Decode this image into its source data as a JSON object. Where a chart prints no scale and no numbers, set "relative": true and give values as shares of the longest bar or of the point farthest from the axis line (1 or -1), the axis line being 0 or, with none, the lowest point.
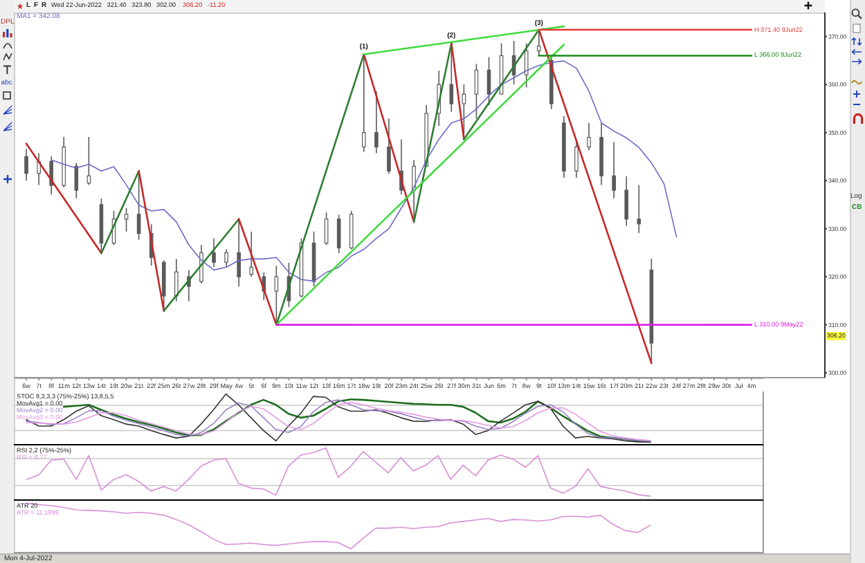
{
  "chart_data": [
    {
      "type": "candlestick",
      "title": "Wed 22-Jun-2022   321.40   323.80   302.00",
      "subtitle": "306.20   -11.20",
      "categories": [
        "6w",
        "7t",
        "8f",
        "11m",
        "12t",
        "13w",
        "14t",
        "19t",
        "20w",
        "21t",
        "22f",
        "25m",
        "26t",
        "27w",
        "28t",
        "29f",
        "May",
        "4w",
        "5t",
        "6f",
        "9m",
        "10t",
        "11w",
        "12t",
        "13f",
        "16m",
        "17t",
        "18w",
        "19t",
        "20f",
        "23m",
        "24t",
        "25w",
        "26t",
        "27f",
        "30m",
        "31t",
        "Jun",
        "6m",
        "7t",
        "8w",
        "9t",
        "10f",
        "13m",
        "14t",
        "15w",
        "16t",
        "17f",
        "20m",
        "21t",
        "22w",
        "23t",
        "24f",
        "27m",
        "28t",
        "29w",
        "30t",
        "Jul",
        "4m"
      ],
      "ohlc": [
        [
          345,
          346.6,
          340,
          341.5
        ],
        [
          341.5,
          345.7,
          339.1,
          344
        ],
        [
          344,
          345.1,
          337.1,
          339
        ],
        [
          339,
          349.1,
          338.6,
          347
        ],
        [
          343,
          343.7,
          336.3,
          338
        ],
        [
          339.5,
          349.1,
          339.1,
          341
        ],
        [
          335,
          336.3,
          324.9,
          327
        ],
        [
          327,
          333.7,
          326.6,
          332
        ],
        [
          332,
          334.3,
          329.4,
          333
        ],
        [
          333,
          342,
          327.7,
          329
        ],
        [
          329,
          330.9,
          322.3,
          324
        ],
        [
          323,
          323.4,
          312.9,
          316
        ],
        [
          316,
          323.7,
          314.9,
          321
        ],
        [
          320,
          321.4,
          314.9,
          318
        ],
        [
          319,
          326.6,
          318.6,
          325
        ],
        [
          325,
          328,
          322,
          323
        ],
        [
          323,
          325.7,
          322,
          325
        ],
        [
          325,
          332,
          318,
          320
        ],
        [
          320.5,
          329.4,
          320,
          322
        ],
        [
          320,
          320.9,
          315.1,
          317
        ],
        [
          317,
          322.3,
          310,
          320
        ],
        [
          320,
          322.9,
          313.7,
          315
        ],
        [
          316,
          328,
          315.7,
          327
        ],
        [
          327,
          329.4,
          318,
          319
        ],
        [
          327,
          333.4,
          326.6,
          332
        ],
        [
          332,
          332.9,
          324.9,
          326
        ],
        [
          326,
          333.7,
          325.7,
          333
        ],
        [
          347,
          366.3,
          346,
          350
        ],
        [
          350,
          358.6,
          345.7,
          347
        ],
        [
          347,
          352.9,
          341.4,
          342
        ],
        [
          342,
          348.6,
          337.1,
          338
        ],
        [
          338,
          344.3,
          331.4,
          343
        ],
        [
          343,
          355.7,
          342.9,
          354
        ],
        [
          354,
          362.9,
          351.4,
          360
        ],
        [
          360,
          368.6,
          354.3,
          356
        ],
        [
          356,
          360,
          348.6,
          358
        ],
        [
          358,
          364.3,
          352.9,
          363
        ],
        [
          363,
          365.7,
          355.7,
          358
        ],
        [
          358,
          368.6,
          358,
          366
        ],
        [
          366,
          369.1,
          360,
          362
        ],
        [
          362,
          368.6,
          359.4,
          367
        ],
        [
          367,
          371.4,
          366,
          368
        ],
        [
          365,
          365.7,
          354.9,
          356
        ],
        [
          352,
          353.4,
          340.6,
          342
        ],
        [
          342,
          348.6,
          340.6,
          347
        ],
        [
          347,
          352,
          346.3,
          349
        ],
        [
          349,
          352,
          339.1,
          341
        ],
        [
          341,
          348,
          336.3,
          338
        ],
        [
          338,
          340.9,
          330.6,
          332
        ],
        [
          332,
          339.1,
          329.1,
          331
        ],
        [
          321.4,
          323.8,
          302,
          306.2
        ],
        null,
        null,
        null,
        null,
        null,
        null,
        null,
        null
      ],
      "color": "#5a5a5a",
      "ylim": [
        299,
        375
      ],
      "yticks": [
        {
          "value": 300,
          "label": "300.00"
        },
        {
          "value": 310,
          "label": "310.00"
        },
        {
          "value": 320,
          "label": "320.00"
        },
        {
          "value": 330,
          "label": "330.00"
        },
        {
          "value": 340,
          "label": "340.00"
        },
        {
          "value": 350,
          "label": "350.00"
        },
        {
          "value": 360,
          "label": "360.00"
        },
        {
          "value": 370,
          "label": "370.00"
        }
      ],
      "legend": "top left",
      "series": [
        {
          "type": "line",
          "name": "MA1 = 342.08",
          "color": "#6b6bc9",
          "values": [
            null,
            null,
            344.3,
            343.4,
            342.6,
            343.4,
            342,
            342.9,
            339.1,
            334.9,
            333.7,
            334,
            331.4,
            326.6,
            323.4,
            321.4,
            322,
            323.4,
            323.7,
            323.7,
            324,
            320.9,
            319.4,
            319.1,
            320.9,
            322,
            324.3,
            325.7,
            328,
            330,
            334.3,
            338.6,
            344.3,
            348.6,
            352,
            352.9,
            354.9,
            357.7,
            360,
            361.4,
            362.9,
            364,
            364.6,
            364.9,
            363.4,
            358.6,
            352,
            350.3,
            348.9,
            346.9,
            343.7,
            339.4,
            328.3,
            null,
            null,
            null,
            null,
            null,
            null
          ]
        },
        {
          "type": "line",
          "color": "#c62828",
          "x": [
            "6w",
            "14t"
          ],
          "values": [
            347.7,
            324.9
          ]
        },
        {
          "type": "line",
          "color": "#2e7d32",
          "x": [
            "14t",
            "21t"
          ],
          "values": [
            324.9,
            342
          ]
        },
        {
          "type": "line",
          "color": "#c62828",
          "x": [
            "21t",
            "25m"
          ],
          "values": [
            342,
            312.9
          ]
        },
        {
          "type": "line",
          "color": "#2e7d32",
          "x": [
            "25m",
            "4w"
          ],
          "values": [
            312.9,
            332
          ]
        },
        {
          "type": "line",
          "color": "#c62828",
          "x": [
            "4w",
            "9m"
          ],
          "values": [
            332,
            310
          ]
        },
        {
          "type": "line",
          "color": "#2e7d32",
          "x": [
            "9m",
            "18w"
          ],
          "values": [
            310,
            366.3
          ]
        },
        {
          "type": "line",
          "color": "#c62828",
          "x": [
            "18w",
            "24t"
          ],
          "values": [
            366.3,
            331.4
          ]
        },
        {
          "type": "line",
          "color": "#2e7d32",
          "x": [
            "24t",
            "27f"
          ],
          "values": [
            331.4,
            368.6
          ]
        },
        {
          "type": "line",
          "color": "#c62828",
          "x": [
            "27f",
            "30m"
          ],
          "values": [
            368.6,
            348.6
          ]
        },
        {
          "type": "line",
          "color": "#2e7d32",
          "x": [
            "30m",
            "9t"
          ],
          "values": [
            348.6,
            371.4
          ]
        },
        {
          "type": "line",
          "color": "#c62828",
          "x": [
            "9t",
            "22w"
          ],
          "values": [
            371.4,
            302
          ]
        },
        {
          "type": "line",
          "color": "#3ddc3d",
          "x": [
            "9m",
            "13m"
          ],
          "values": [
            310,
            368.3
          ]
        },
        {
          "type": "line",
          "color": "#3ddc3d",
          "x": [
            "18w",
            "13m"
          ],
          "values": [
            366.3,
            372.1
          ]
        },
        {
          "type": "line",
          "name": "H 371.40 9Jun22",
          "color": "#e53935",
          "x": [
            "9t",
            "4m"
          ],
          "values": [
            371.4,
            371.4
          ]
        },
        {
          "type": "line",
          "name": "L 366.00 9Jun22",
          "color": "#1b8a1b",
          "x": [
            "9t",
            "4m"
          ],
          "values": [
            366,
            366
          ]
        },
        {
          "type": "line",
          "name": "L 310.00 9May22",
          "color": "#e020e0",
          "x": [
            "9m",
            "4m"
          ],
          "values": [
            310,
            310
          ]
        }
      ],
      "annotations": [
        "L",
        "F",
        "R",
        "DPL",
        "abc",
        "Log",
        "CB",
        "Mon 4-Jul-2022",
        "306.20",
        {
          "text": "(1)",
          "x": "18w",
          "y": 366.3
        },
        {
          "text": "(2)",
          "x": "27f",
          "y": 368.6
        },
        {
          "text": "(3)",
          "x": "9t",
          "y": 371.4
        }
      ]
    },
    {
      "type": "line",
      "title": "STOC 8,3,3,3 (75%-25%) 13,8,5,5",
      "relative": true,
      "tick_labels": false,
      "legend": "top left",
      "categories": [
        "6w",
        "7t",
        "8f",
        "11m",
        "12t",
        "13w",
        "14t",
        "19t",
        "20w",
        "21t",
        "22f",
        "25m",
        "26t",
        "27w",
        "28t",
        "29f",
        "May",
        "4w",
        "5t",
        "6f",
        "9m",
        "10t",
        "11w",
        "12t",
        "13f",
        "16m",
        "17t",
        "18w",
        "19t",
        "20f",
        "23m",
        "24t",
        "25w",
        "26t",
        "27f",
        "30m",
        "31t",
        "Jun",
        "6m",
        "7t",
        "8w",
        "9t",
        "10f",
        "13m",
        "14t",
        "15w",
        "16t",
        "17f",
        "20m",
        "21t",
        "22w",
        "23t",
        "24f",
        "27m",
        "28t",
        "29w",
        "30t",
        "Jul",
        "4m"
      ],
      "series": [
        {
          "color": "#1e6e1e",
          "values": [
            null,
            null,
            null,
            0.74,
            0.76,
            0.78,
            0.68,
            0.58,
            0.5,
            0.43,
            0.37,
            0.3,
            0.22,
            0.16,
            0.17,
            0.28,
            0.45,
            0.62,
            0.78,
            0.88,
            0.78,
            0.6,
            0.52,
            0.56,
            0.7,
            0.85,
            0.89,
            0.88,
            0.86,
            0.84,
            0.82,
            0.8,
            0.79,
            0.78,
            0.78,
            0.74,
            0.62,
            0.45,
            0.42,
            0.5,
            0.64,
            0.85,
            0.72,
            0.55,
            0.4,
            0.25,
            0.14,
            0.11,
            0.08,
            0.05,
            0.03,
            null,
            null,
            null,
            null,
            null,
            null,
            null,
            null
          ]
        },
        {
          "name": "MovAvg1 = 0.00",
          "color": "#333333",
          "values": [
            0.48,
            0.35,
            0.35,
            0.48,
            0.65,
            0.76,
            0.56,
            0.48,
            0.39,
            0.35,
            0.26,
            0.18,
            0.11,
            0.14,
            0.39,
            0.68,
            1.0,
            0.78,
            0.52,
            0.26,
            0.05,
            0.35,
            0.61,
            0.95,
            0.93,
            0.74,
            0.65,
            0.65,
            0.68,
            0.61,
            0.52,
            0.45,
            0.44,
            0.48,
            0.48,
            0.39,
            0.18,
            0.26,
            0.45,
            0.61,
            0.78,
            0.85,
            0.71,
            0.35,
            0.11,
            0.14,
            0.11,
            0.09,
            0.05,
            0.03,
            0.03,
            null,
            null,
            null,
            null,
            null,
            null,
            null,
            null
          ]
        },
        {
          "name": "MovAvg2 = 0.00",
          "color": "#9a80c8",
          "values": [
            0.45,
            0.42,
            0.38,
            0.4,
            0.52,
            0.66,
            0.66,
            0.55,
            0.47,
            0.4,
            0.33,
            0.26,
            0.18,
            0.14,
            0.22,
            0.4,
            0.68,
            0.82,
            0.76,
            0.52,
            0.28,
            0.22,
            0.34,
            0.64,
            0.83,
            0.88,
            0.78,
            0.68,
            0.66,
            0.65,
            0.6,
            0.53,
            0.47,
            0.46,
            0.47,
            0.45,
            0.35,
            0.28,
            0.3,
            0.44,
            0.61,
            0.75,
            0.78,
            0.64,
            0.39,
            0.2,
            0.12,
            0.11,
            0.08,
            0.06,
            0.04,
            null,
            null,
            null,
            null,
            null,
            null,
            null,
            null
          ]
        },
        {
          "name": "MovAvg3 = 0.00",
          "color": "#e49ae4",
          "values": [
            0.42,
            0.41,
            0.4,
            0.39,
            0.43,
            0.52,
            0.62,
            0.62,
            0.56,
            0.47,
            0.4,
            0.33,
            0.26,
            0.19,
            0.18,
            0.25,
            0.43,
            0.64,
            0.75,
            0.7,
            0.52,
            0.34,
            0.28,
            0.4,
            0.6,
            0.78,
            0.83,
            0.78,
            0.71,
            0.66,
            0.63,
            0.59,
            0.53,
            0.49,
            0.47,
            0.46,
            0.42,
            0.36,
            0.31,
            0.34,
            0.46,
            0.62,
            0.71,
            0.72,
            0.59,
            0.41,
            0.24,
            0.15,
            0.11,
            0.08,
            0.06,
            null,
            null,
            null,
            null,
            null,
            null,
            null,
            null
          ]
        }
      ],
      "ref_lines": [
        {
          "axis": "y",
          "value": 0.77,
          "color": "#c8c8c8"
        },
        {
          "axis": "y",
          "value": 0.26,
          "color": "#c8c8c8"
        }
      ]
    },
    {
      "type": "line",
      "title": "RSI 2,2 (75%-25%)",
      "relative": true,
      "tick_labels": false,
      "legend": "top left",
      "categories": [
        "6w",
        "7t",
        "8f",
        "11m",
        "12t",
        "13w",
        "14t",
        "19t",
        "20w",
        "21t",
        "22f",
        "25m",
        "26t",
        "27w",
        "28t",
        "29f",
        "May",
        "4w",
        "5t",
        "6f",
        "9m",
        "10t",
        "11w",
        "12t",
        "13f",
        "16m",
        "17t",
        "18w",
        "19t",
        "20f",
        "23m",
        "24t",
        "25w",
        "26t",
        "27f",
        "30m",
        "31t",
        "Jun",
        "6m",
        "7t",
        "8w",
        "9t",
        "10f",
        "13m",
        "14t",
        "15w",
        "16t",
        "17f",
        "20m",
        "21t",
        "22w",
        "23t",
        "24f",
        "27m",
        "28t",
        "29w",
        "30t",
        "Jul",
        "4m"
      ],
      "series": [
        {
          "name": "RSI = 6.77",
          "color": "#d88fd8",
          "values": [
            0.38,
            0.47,
            0.76,
            0.78,
            0.38,
            0.85,
            0.17,
            0.38,
            0.47,
            0.34,
            0.15,
            0.24,
            0.15,
            0.38,
            0.64,
            0.76,
            0.79,
            0.3,
            0.21,
            0.19,
            0.07,
            0.64,
            0.86,
            0.91,
            1.0,
            0.42,
            0.64,
            0.93,
            0.72,
            0.51,
            0.81,
            0.55,
            0.66,
            0.85,
            0.38,
            0.66,
            0.45,
            0.76,
            0.86,
            0.78,
            0.62,
            0.85,
            0.21,
            0.11,
            0.24,
            0.59,
            0.24,
            0.19,
            0.15,
            0.08,
            0.05,
            null,
            null,
            null,
            null,
            null,
            null,
            null,
            null
          ]
        }
      ],
      "ref_lines": [
        {
          "axis": "y",
          "value": 0.79,
          "color": "#c8c8c8"
        },
        {
          "axis": "y",
          "value": 0.26,
          "color": "#c8c8c8"
        }
      ]
    },
    {
      "type": "line",
      "title": "ATR 20",
      "relative": true,
      "tick_labels": false,
      "legend": "top left",
      "categories": [
        "6w",
        "7t",
        "8f",
        "11m",
        "12t",
        "13w",
        "14t",
        "19t",
        "20w",
        "21t",
        "22f",
        "25m",
        "26t",
        "27w",
        "28t",
        "29f",
        "May",
        "4w",
        "5t",
        "6f",
        "9m",
        "10t",
        "11w",
        "12t",
        "13f",
        "16m",
        "17t",
        "18w",
        "19t",
        "20f",
        "23m",
        "24t",
        "25w",
        "26t",
        "27f",
        "30m",
        "31t",
        "Jun",
        "6m",
        "7t",
        "8w",
        "9t",
        "10f",
        "13m",
        "14t",
        "15w",
        "16t",
        "17f",
        "20m",
        "21t",
        "22w",
        "23t",
        "24f",
        "27m",
        "28t",
        "29w",
        "30t",
        "Jul",
        "4m"
      ],
      "series": [
        {
          "name": "ATR = 11.1899",
          "color": "#d88fd8",
          "values": [
            1.0,
            0.97,
            0.95,
            0.91,
            0.86,
            0.85,
            0.84,
            0.82,
            0.79,
            0.81,
            0.79,
            0.75,
            0.66,
            0.55,
            0.41,
            0.25,
            0.14,
            0.15,
            0.17,
            0.14,
            0.12,
            0.15,
            0.18,
            0.2,
            0.2,
            0.18,
            0.05,
            0.27,
            0.48,
            0.48,
            0.5,
            0.47,
            0.5,
            0.51,
            0.59,
            0.62,
            0.65,
            0.68,
            0.62,
            0.66,
            0.65,
            0.63,
            0.65,
            0.72,
            0.73,
            0.71,
            0.75,
            0.56,
            0.43,
            0.39,
            0.54,
            null,
            null,
            null,
            null,
            null,
            null,
            null,
            null
          ]
        }
      ]
    }
  ]
}
